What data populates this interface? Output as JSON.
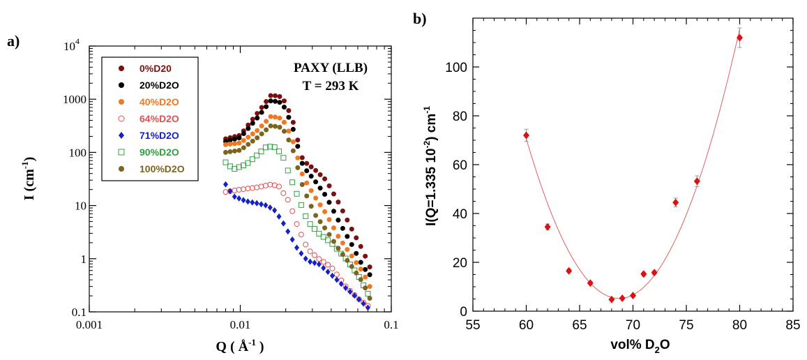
{
  "chart_data": [
    {
      "panel_label": "a)",
      "type": "scatter",
      "annotation": [
        "PAXY (LLB)",
        "T = 293 K"
      ],
      "xlabel": {
        "main": "Q ( Å",
        "sup": "-1",
        "after": " )"
      },
      "ylabel": {
        "main": "I (cm",
        "sup": "-1",
        "after": ")"
      },
      "x_scale": "log",
      "y_scale": "log",
      "xlim": [
        0.001,
        0.1
      ],
      "ylim": [
        0.1,
        10000
      ],
      "x_ticks": [
        {
          "v": 0.001,
          "label": "0.001"
        },
        {
          "v": 0.01,
          "label": "0.01"
        },
        {
          "v": 0.1,
          "label": "0.1"
        }
      ],
      "y_ticks": [
        {
          "v": 0.1,
          "label": "0.1"
        },
        {
          "v": 1,
          "label": "1"
        },
        {
          "v": 10,
          "label": "10"
        },
        {
          "v": 100,
          "label": "100"
        },
        {
          "v": 1000,
          "label": "1000"
        },
        {
          "v": 10000,
          "label": "10",
          "sup": "4"
        }
      ],
      "legend_position": "top-left",
      "series": [
        {
          "name": "0%D20",
          "color": "#7b1010",
          "marker": "filled-circle",
          "x": [
            0.008,
            0.01,
            0.013,
            0.016,
            0.019,
            0.022,
            0.026,
            0.031,
            0.037,
            0.045,
            0.055,
            0.065,
            0.072
          ],
          "y": [
            180,
            210,
            550,
            1200,
            1100,
            450,
            70,
            48,
            30,
            11,
            3.5,
            1.4,
            0.7
          ]
        },
        {
          "name": "20%D2O",
          "color": "#000000",
          "marker": "filled-circle",
          "x": [
            0.008,
            0.01,
            0.013,
            0.016,
            0.019,
            0.022,
            0.026,
            0.031,
            0.037,
            0.045,
            0.055,
            0.065,
            0.072
          ],
          "y": [
            160,
            190,
            450,
            950,
            850,
            330,
            55,
            30,
            15,
            5,
            1.8,
            0.7,
            0.5
          ]
        },
        {
          "name": "40%D2O",
          "color": "#f07820",
          "marker": "filled-circle",
          "x": [
            0.008,
            0.01,
            0.013,
            0.016,
            0.019,
            0.022,
            0.026,
            0.031,
            0.037,
            0.045,
            0.055,
            0.065,
            0.072
          ],
          "y": [
            140,
            150,
            260,
            480,
            430,
            190,
            35,
            15,
            7,
            2.5,
            1.1,
            0.55,
            0.3
          ]
        },
        {
          "name": "64%D2O",
          "color": "#e05050",
          "marker": "open-circle",
          "x": [
            0.008,
            0.01,
            0.013,
            0.016,
            0.018,
            0.021,
            0.024,
            0.028,
            0.033,
            0.04,
            0.05,
            0.06,
            0.07
          ],
          "y": [
            18,
            20,
            22,
            25,
            23,
            12,
            4,
            1.5,
            1.0,
            0.7,
            0.3,
            0.18,
            0.13
          ]
        },
        {
          "name": "71%D2O",
          "color": "#1520c8",
          "marker": "filled-diamond",
          "x": [
            0.008,
            0.009,
            0.011,
            0.013,
            0.015,
            0.017,
            0.019,
            0.021,
            0.024,
            0.028,
            0.033,
            0.04,
            0.05,
            0.06,
            0.07
          ],
          "y": [
            25,
            15,
            12,
            11,
            10,
            8,
            5,
            3,
            1.5,
            0.9,
            0.8,
            0.5,
            0.28,
            0.18,
            0.12
          ]
        },
        {
          "name": "90%D2O",
          "color": "#30a040",
          "marker": "open-square",
          "x": [
            0.008,
            0.009,
            0.011,
            0.013,
            0.015,
            0.017,
            0.019,
            0.021,
            0.024,
            0.028,
            0.033,
            0.04,
            0.05,
            0.06,
            0.07
          ],
          "y": [
            65,
            48,
            60,
            90,
            130,
            125,
            90,
            40,
            15,
            5,
            3,
            2,
            1.0,
            0.5,
            0.22
          ]
        },
        {
          "name": "100%D2O",
          "color": "#7a6420",
          "marker": "filled-circle",
          "x": [
            0.008,
            0.01,
            0.013,
            0.016,
            0.019,
            0.022,
            0.026,
            0.031,
            0.037,
            0.045,
            0.055,
            0.065,
            0.072
          ],
          "y": [
            100,
            110,
            190,
            320,
            290,
            130,
            22,
            7,
            3.5,
            1.5,
            0.7,
            0.35,
            0.18
          ]
        }
      ]
    },
    {
      "panel_label": "b)",
      "type": "scatter",
      "xlabel": {
        "main": "vol% D",
        "sub": "2",
        "after": "O"
      },
      "ylabel": {
        "main": "I(Q=1.335 10",
        "sup": "-2",
        "after": ") cm",
        "sup2": "-1"
      },
      "xlim": [
        55,
        85
      ],
      "ylim": [
        0,
        120
      ],
      "x_ticks": [
        55,
        60,
        65,
        70,
        75,
        80,
        85
      ],
      "y_ticks": [
        0,
        20,
        40,
        60,
        80,
        100
      ],
      "grid": false,
      "legend_position": "none",
      "series": [
        {
          "name": "",
          "color": "#dd1111",
          "marker": "filled-diamond",
          "x": [
            60,
            62,
            64,
            66,
            68,
            69,
            70,
            71,
            72,
            74,
            76,
            80
          ],
          "y": [
            72,
            34.5,
            16.5,
            11.5,
            4.8,
            5.3,
            6.4,
            15.2,
            15.8,
            44.5,
            53.2,
            112
          ],
          "err": [
            2.5,
            1.2,
            0.8,
            0.6,
            0.4,
            0.4,
            0.5,
            0.8,
            0.8,
            1.8,
            2.2,
            4
          ]
        }
      ],
      "fit": {
        "type": "parabola",
        "color": "#e06060",
        "x_range": [
          60,
          80
        ],
        "vertex_x": 68.7,
        "vertex_y": 5.2,
        "a": 0.865
      }
    }
  ]
}
